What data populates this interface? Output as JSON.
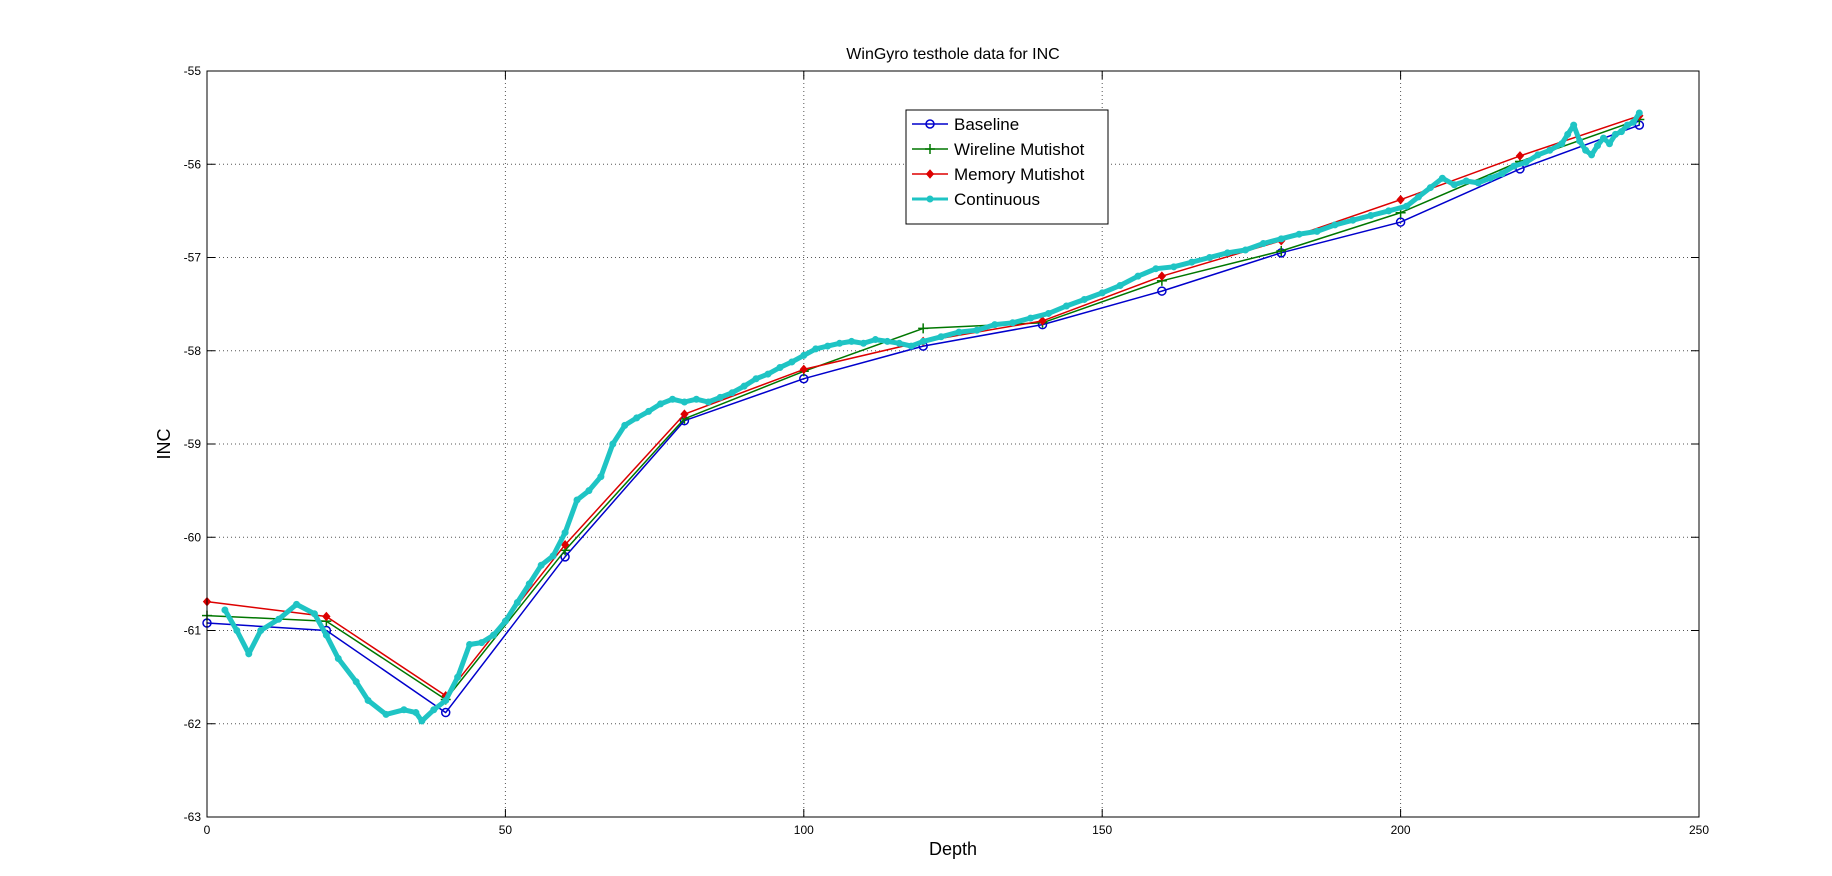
{
  "chart_data": {
    "type": "line",
    "title": "WinGyro testhole data for INC",
    "xlabel": "Depth",
    "ylabel": "INC",
    "xlim": [
      0,
      250
    ],
    "ylim": [
      -63,
      -55
    ],
    "xticks": [
      0,
      50,
      100,
      150,
      200,
      250
    ],
    "yticks": [
      -63,
      -62,
      -61,
      -60,
      -59,
      -58,
      -57,
      -56,
      -55
    ],
    "xtick_labels": [
      "0",
      "50",
      "100",
      "150",
      "200",
      "250"
    ],
    "ytick_labels": [
      "-63",
      "-62",
      "-61",
      "-60",
      "-59",
      "-58",
      "-57",
      "-56",
      "-55"
    ],
    "grid": true,
    "legend_position": "top-center",
    "series": [
      {
        "name": "Baseline",
        "color": "#0000cc",
        "marker": "circle",
        "x": [
          0,
          20,
          40,
          60,
          80,
          100,
          120,
          140,
          160,
          180,
          200,
          220,
          240
        ],
        "y": [
          -60.92,
          -61.0,
          -61.88,
          -60.21,
          -58.75,
          -58.3,
          -57.95,
          -57.72,
          -57.36,
          -56.95,
          -56.62,
          -56.05,
          -55.58
        ]
      },
      {
        "name": "Wireline Mutishot",
        "color": "#007700",
        "marker": "plus",
        "x": [
          0,
          20,
          40,
          60,
          80,
          100,
          120,
          140,
          160,
          180,
          200,
          220,
          240
        ],
        "y": [
          -60.84,
          -60.9,
          -61.74,
          -60.14,
          -58.73,
          -58.22,
          -57.76,
          -57.7,
          -57.25,
          -56.93,
          -56.52,
          -55.97,
          -55.52
        ]
      },
      {
        "name": "Memory Mutishot",
        "color": "#dd0000",
        "marker": "diamond",
        "x": [
          0,
          20,
          40,
          60,
          80,
          100,
          120,
          140,
          160,
          180,
          200,
          220,
          240
        ],
        "y": [
          -60.69,
          -60.85,
          -61.7,
          -60.08,
          -58.68,
          -58.2,
          -57.9,
          -57.68,
          -57.2,
          -56.82,
          -56.38,
          -55.91,
          -55.48
        ]
      },
      {
        "name": "Continuous",
        "color": "#1fc4c4",
        "marker": "star",
        "x": [
          3,
          5,
          7,
          9,
          12,
          15,
          18,
          20,
          22,
          25,
          27,
          30,
          33,
          35,
          36,
          38,
          40,
          42,
          44,
          46,
          48,
          50,
          52,
          54,
          56,
          58,
          60,
          62,
          64,
          66,
          68,
          70,
          72,
          74,
          76,
          78,
          80,
          82,
          84,
          86,
          88,
          90,
          92,
          94,
          96,
          98,
          100,
          102,
          104,
          106,
          108,
          110,
          112,
          114,
          116,
          118,
          120,
          123,
          126,
          129,
          132,
          135,
          138,
          141,
          144,
          147,
          150,
          153,
          156,
          159,
          162,
          165,
          168,
          171,
          174,
          177,
          180,
          183,
          186,
          189,
          192,
          195,
          198,
          201,
          203,
          205,
          207,
          209,
          211,
          213,
          215,
          217,
          219,
          221,
          223,
          225,
          227,
          228,
          229,
          230,
          231,
          232,
          233,
          234,
          235,
          236,
          237,
          238,
          239,
          240
        ],
        "y": [
          -60.78,
          -61.0,
          -61.25,
          -61.0,
          -60.88,
          -60.72,
          -60.82,
          -61.05,
          -61.3,
          -61.55,
          -61.75,
          -61.9,
          -61.85,
          -61.88,
          -61.97,
          -61.85,
          -61.75,
          -61.5,
          -61.15,
          -61.13,
          -61.05,
          -60.9,
          -60.7,
          -60.5,
          -60.3,
          -60.2,
          -59.95,
          -59.6,
          -59.5,
          -59.35,
          -59.0,
          -58.8,
          -58.72,
          -58.65,
          -58.57,
          -58.52,
          -58.55,
          -58.52,
          -58.55,
          -58.5,
          -58.45,
          -58.38,
          -58.3,
          -58.25,
          -58.18,
          -58.12,
          -58.05,
          -57.98,
          -57.95,
          -57.92,
          -57.9,
          -57.92,
          -57.88,
          -57.9,
          -57.92,
          -57.95,
          -57.9,
          -57.85,
          -57.8,
          -57.78,
          -57.72,
          -57.7,
          -57.65,
          -57.6,
          -57.52,
          -57.45,
          -57.38,
          -57.3,
          -57.2,
          -57.12,
          -57.1,
          -57.05,
          -57.0,
          -56.95,
          -56.92,
          -56.85,
          -56.8,
          -56.75,
          -56.72,
          -56.65,
          -56.6,
          -56.55,
          -56.5,
          -56.45,
          -56.35,
          -56.25,
          -56.15,
          -56.22,
          -56.18,
          -56.2,
          -56.15,
          -56.1,
          -56.02,
          -55.98,
          -55.9,
          -55.85,
          -55.78,
          -55.68,
          -55.58,
          -55.75,
          -55.85,
          -55.9,
          -55.8,
          -55.72,
          -55.78,
          -55.68,
          -55.65,
          -55.58,
          -55.55,
          -55.45
        ]
      }
    ]
  }
}
